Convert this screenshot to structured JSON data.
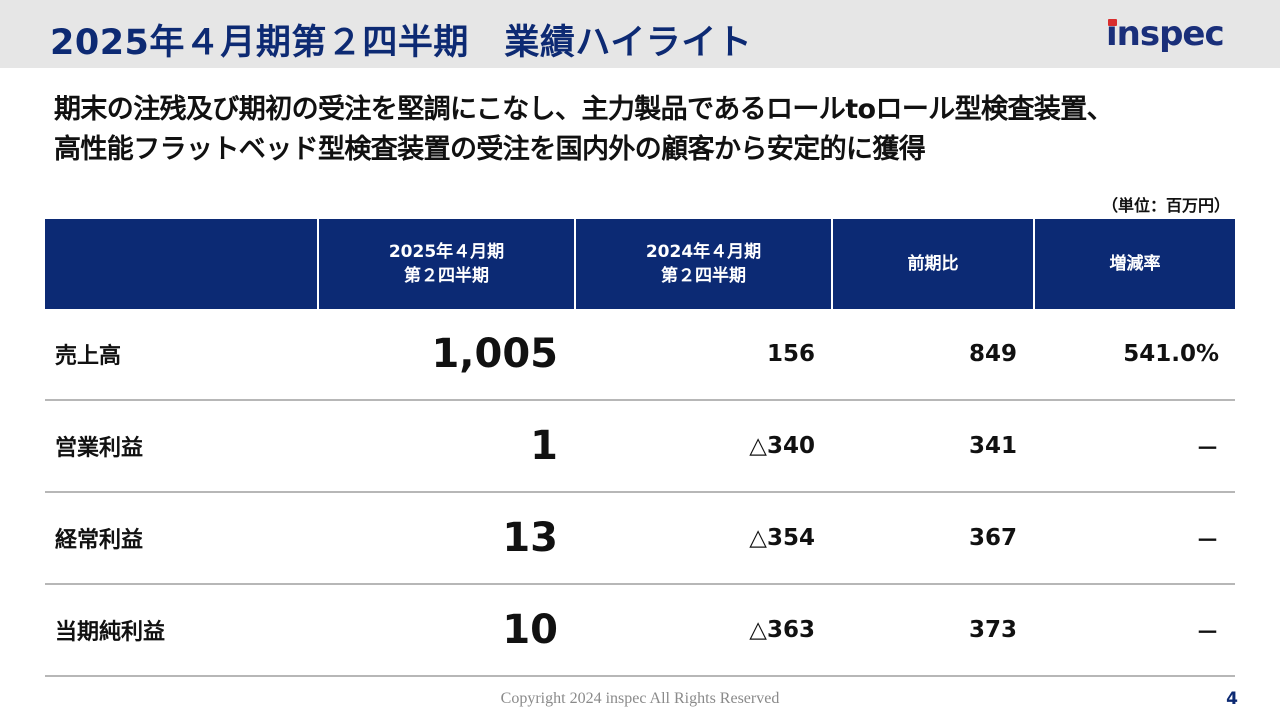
{
  "header": {
    "title": "2025年４月期第２四半期　業績ハイライト",
    "logo_text": "inspec",
    "logo_colors": {
      "text": "#1a2f7a",
      "accent": "#d92e2e"
    }
  },
  "headline": {
    "line1": "期末の注残及び期初の受注を堅調にこなし、主力製品であるロールtoロール型検査装置、",
    "line2": "高性能フラットベッド型検査装置の受注を国内外の顧客から安定的に獲得"
  },
  "unit_note": "（単位：百万円）",
  "table": {
    "header_color": "#0c2a74",
    "columns": [
      {
        "line1": "",
        "line2": ""
      },
      {
        "line1": "2025年４月期",
        "line2": "第２四半期"
      },
      {
        "line1": "2024年４月期",
        "line2": "第２四半期"
      },
      {
        "line1": "前期比",
        "line2": ""
      },
      {
        "line1": "増減率",
        "line2": ""
      }
    ],
    "rows": [
      {
        "label": "売上高",
        "current": "1,005",
        "previous": "156",
        "change": "849",
        "rate": "541.0%"
      },
      {
        "label": "営業利益",
        "current": "1",
        "previous": "△340",
        "change": "341",
        "rate": "－"
      },
      {
        "label": "経常利益",
        "current": "13",
        "previous": "△354",
        "change": "367",
        "rate": "－"
      },
      {
        "label": "当期純利益",
        "current": "10",
        "previous": "△363",
        "change": "373",
        "rate": "－"
      }
    ]
  },
  "footer": {
    "copyright": "Copyright 2024 inspec All Rights Reserved",
    "page_number": "4"
  }
}
